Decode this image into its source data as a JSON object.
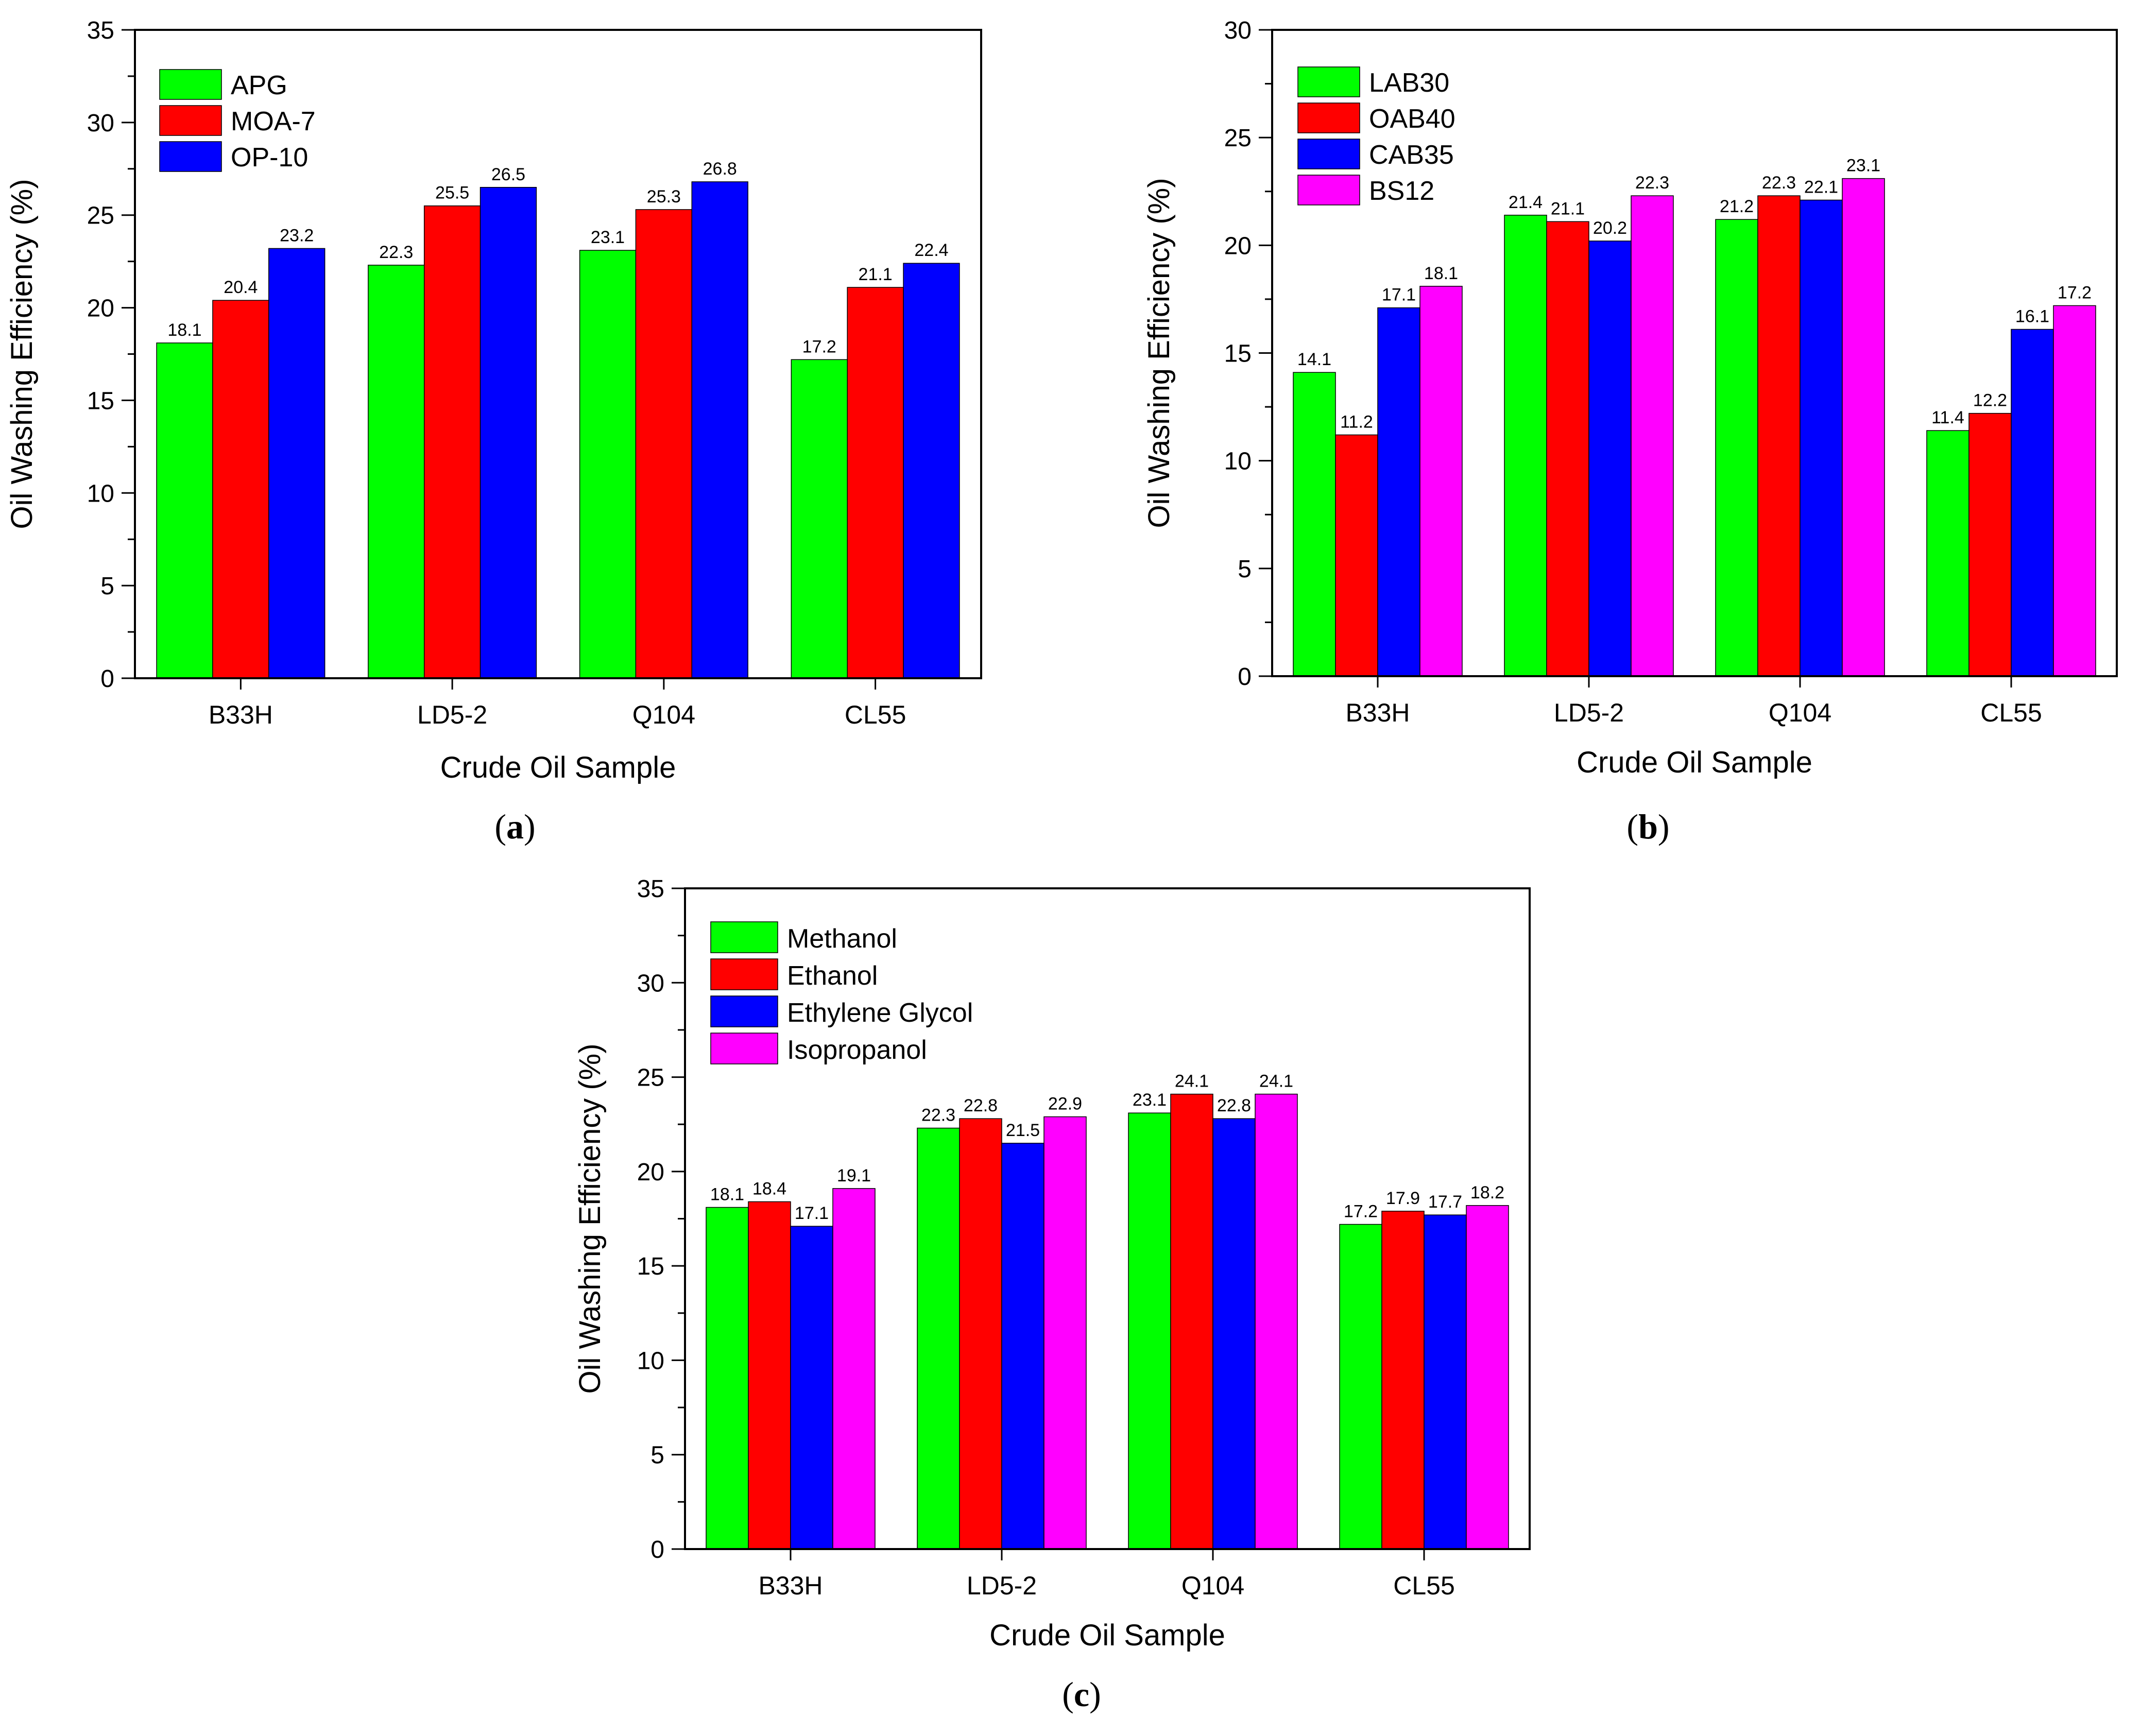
{
  "chart_data": [
    {
      "type": "bar",
      "panel_label": "a",
      "xlabel": "Crude Oil Sample",
      "ylabel": "Oil Washing Efficiency (%)",
      "ylim": [
        0,
        35
      ],
      "yticks": [
        0,
        5,
        10,
        15,
        20,
        25,
        30,
        35
      ],
      "categories": [
        "B33H",
        "LD5-2",
        "Q104",
        "CL55"
      ],
      "series": [
        {
          "name": "APG",
          "color": "#00ff00",
          "values": [
            18.1,
            22.3,
            23.1,
            17.2
          ]
        },
        {
          "name": "MOA-7",
          "color": "#ff0000",
          "values": [
            20.4,
            25.5,
            25.3,
            21.1
          ]
        },
        {
          "name": "OP-10",
          "color": "#0000ff",
          "values": [
            23.2,
            26.5,
            26.8,
            22.4
          ]
        }
      ],
      "legend": "top-left",
      "grid": false
    },
    {
      "type": "bar",
      "panel_label": "b",
      "xlabel": "Crude Oil Sample",
      "ylabel": "Oil Washing Efficiency (%)",
      "ylim": [
        0,
        30
      ],
      "yticks": [
        0,
        5,
        10,
        15,
        20,
        25,
        30
      ],
      "categories": [
        "B33H",
        "LD5-2",
        "Q104",
        "CL55"
      ],
      "series": [
        {
          "name": "LAB30",
          "color": "#00ff00",
          "values": [
            14.1,
            21.4,
            21.2,
            11.4
          ]
        },
        {
          "name": "OAB40",
          "color": "#ff0000",
          "values": [
            11.2,
            21.1,
            22.3,
            12.2
          ]
        },
        {
          "name": "CAB35",
          "color": "#0000ff",
          "values": [
            17.1,
            20.2,
            22.1,
            16.1
          ]
        },
        {
          "name": "BS12",
          "color": "#ff00ff",
          "values": [
            18.1,
            22.3,
            23.1,
            17.2
          ]
        }
      ],
      "legend": "top-left",
      "grid": false
    },
    {
      "type": "bar",
      "panel_label": "c",
      "xlabel": "Crude Oil Sample",
      "ylabel": "Oil Washing Efficiency (%)",
      "ylim": [
        0,
        35
      ],
      "yticks": [
        0,
        5,
        10,
        15,
        20,
        25,
        30,
        35
      ],
      "categories": [
        "B33H",
        "LD5-2",
        "Q104",
        "CL55"
      ],
      "series": [
        {
          "name": "Methanol",
          "color": "#00ff00",
          "values": [
            18.1,
            22.3,
            23.1,
            17.2
          ]
        },
        {
          "name": "Ethanol",
          "color": "#ff0000",
          "values": [
            18.4,
            22.8,
            24.1,
            17.9
          ]
        },
        {
          "name": "Ethylene Glycol",
          "color": "#0000ff",
          "values": [
            17.1,
            21.5,
            22.8,
            17.7
          ]
        },
        {
          "name": "Isopropanol",
          "color": "#ff00ff",
          "values": [
            19.1,
            22.9,
            24.1,
            18.2
          ]
        }
      ],
      "legend": "top-left",
      "grid": false
    }
  ]
}
